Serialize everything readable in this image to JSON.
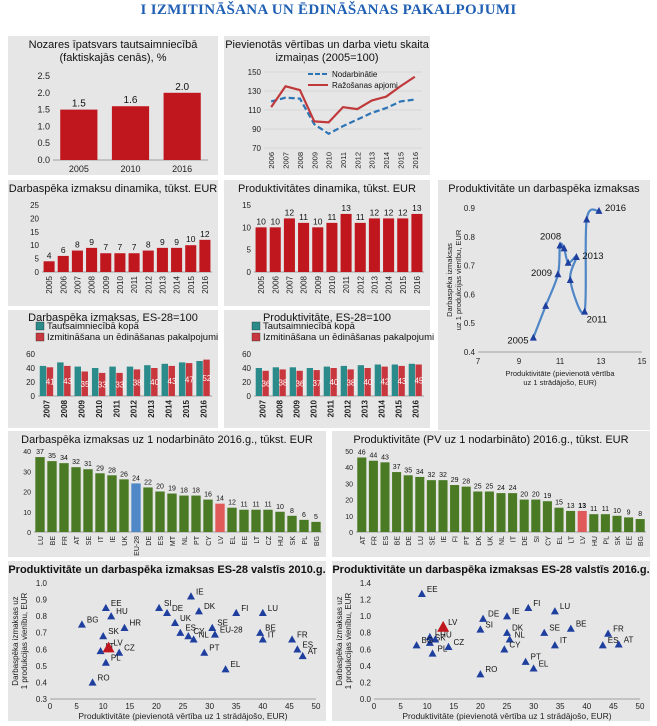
{
  "page_title": "I IZMITINĀŠANA UN ĒDINĀŠANAS PAKALPOJUMI",
  "chart_data": [
    {
      "id": "c1",
      "type": "bar",
      "title": "Nozares īpatsvars tautsaimniecībā (faktiskajās cenās), %",
      "categories": [
        "2005",
        "2010",
        "2016"
      ],
      "values": [
        1.5,
        1.6,
        2.0
      ],
      "ylim": [
        0,
        2.5
      ],
      "yticks": [
        0.0,
        0.5,
        1.0,
        1.5,
        2.0,
        2.5
      ],
      "ytick_labels": [
        "0.0",
        "0.5",
        "1.0",
        "1.5",
        "2.0",
        "2.5"
      ],
      "data_labels": [
        "1.5",
        "1.6",
        "2.0"
      ],
      "color": "#c0171f"
    },
    {
      "id": "c2",
      "type": "line",
      "title": "Pievienotās vērtības un darba vietu skaita izmaiņas (2005=100)",
      "x": [
        "2006",
        "2007",
        "2008",
        "2009",
        "2010",
        "2011",
        "2012",
        "2013",
        "2014",
        "2015",
        "2016"
      ],
      "series": [
        {
          "name": "Nodarbinātie",
          "values": [
            119,
            123,
            122,
            95,
            85,
            93,
            100,
            107,
            112,
            119,
            121
          ],
          "color": "#2e75b6",
          "dash": true
        },
        {
          "name": "Ražošanas apjomi",
          "values": [
            113,
            135,
            131,
            98,
            97,
            113,
            111,
            120,
            124,
            135,
            145
          ],
          "color": "#c0393b",
          "dash": false
        }
      ],
      "ylim": [
        70,
        150
      ],
      "yticks": [
        70,
        90,
        110,
        130,
        150
      ],
      "ytick_labels": [
        "70",
        "90",
        "110",
        "130",
        "150"
      ],
      "legend_placement": "top-right"
    },
    {
      "id": "c3",
      "type": "bar",
      "title": "Darbaspēka izmaksu dinamika, tūkst. EUR",
      "categories": [
        "2005",
        "2006",
        "2007",
        "2008",
        "2009",
        "2010",
        "2011",
        "2012",
        "2013",
        "2014",
        "2015",
        "2016"
      ],
      "values": [
        4,
        6,
        8,
        9,
        7,
        7,
        7,
        8,
        9,
        9,
        10,
        12
      ],
      "data_labels": [
        "4",
        "6",
        "8",
        "9",
        "7",
        "7",
        "7",
        "8",
        "9",
        "9",
        "10",
        "12"
      ],
      "ylim": [
        0,
        25
      ],
      "yticks": [
        0,
        5,
        10,
        15,
        20,
        25
      ],
      "ytick_labels": [
        "0",
        "5",
        "10",
        "15",
        "20",
        "25"
      ],
      "color": "#c0171f"
    },
    {
      "id": "c4",
      "type": "bar",
      "title": "Produktivitātes dinamika, tūkst. EUR",
      "categories": [
        "2005",
        "2006",
        "2007",
        "2008",
        "2009",
        "2010",
        "2011",
        "2012",
        "2013",
        "2014",
        "2015",
        "2016"
      ],
      "values": [
        10,
        10,
        12,
        11,
        10,
        11,
        13,
        11,
        12,
        12,
        12,
        13
      ],
      "data_labels": [
        "10",
        "10",
        "12",
        "11",
        "10",
        "11",
        "13",
        "11",
        "12",
        "12",
        "12",
        "13"
      ],
      "ylim": [
        0,
        15
      ],
      "yticks": [
        0,
        5,
        10,
        15
      ],
      "ytick_labels": [
        "0",
        "5",
        "10",
        "15"
      ],
      "color": "#c0171f"
    },
    {
      "id": "c5",
      "type": "scatter",
      "title": "Produktivitāte un darbaspēka izmaksas",
      "xlabel": "Produktivitāte (pievienotā vērtība uz 1 strādājošo, EUR)",
      "ylabel": "Darbaspēka izmaksas uz 1 produkcijas vienību, EUR",
      "x": [
        9.7,
        10.3,
        10.9,
        11.0,
        11.2,
        11.4,
        11.8,
        11.5,
        12.2,
        12.3,
        12.9
      ],
      "y": [
        0.45,
        0.56,
        0.67,
        0.77,
        0.76,
        0.71,
        0.73,
        0.65,
        0.54,
        0.86,
        0.89
      ],
      "xlim": [
        7,
        15
      ],
      "ylim": [
        0.4,
        0.9
      ],
      "xticks": [
        7,
        9,
        11,
        13,
        15
      ],
      "xtick_labels": [
        "7",
        "9",
        "11",
        "13",
        "15"
      ],
      "yticks": [
        0.4,
        0.5,
        0.6,
        0.7,
        0.8,
        0.9
      ],
      "ytick_labels": [
        "0.4",
        "0.5",
        "0.6",
        "0.7",
        "0.8",
        "0.9"
      ],
      "annotations": [
        {
          "text": "2005",
          "x": 9.7,
          "y": 0.45
        },
        {
          "text": "2008",
          "x": 11.0,
          "y": 0.77
        },
        {
          "text": "2009",
          "x": 10.9,
          "y": 0.67
        },
        {
          "text": "2011",
          "x": 12.2,
          "y": 0.54
        },
        {
          "text": "2013",
          "x": 11.8,
          "y": 0.73
        },
        {
          "text": "2016",
          "x": 12.9,
          "y": 0.89
        }
      ],
      "color": "#1f3f9f",
      "line_color": "#4f86c6"
    },
    {
      "id": "c6",
      "type": "bar",
      "title": "Darbaspēka izmaksas, ES-28=100",
      "categories": [
        "2007",
        "2008",
        "2009",
        "2010",
        "2011",
        "2012",
        "2013",
        "2014",
        "2015",
        "2016"
      ],
      "series": [
        {
          "name": "Tautsaimniecībā kopā",
          "values": [
            43,
            48,
            42,
            40,
            42,
            42,
            44,
            46,
            48,
            50
          ],
          "color": "#2b8a8a"
        },
        {
          "name": "Izmitināšana un ēdināšanas pakalpojumi",
          "values": [
            41,
            43,
            35,
            33,
            33,
            38,
            40,
            43,
            47,
            52
          ],
          "color": "#c8363e"
        }
      ],
      "data_labels": [
        "41",
        "43",
        "35",
        "33",
        "33",
        "38",
        "40",
        "43",
        "47",
        "52"
      ],
      "ylim": [
        0,
        60
      ],
      "yticks": [
        0,
        20,
        40,
        60
      ],
      "ytick_labels": [
        "0",
        "20",
        "40",
        "60"
      ],
      "legend_placement": "top"
    },
    {
      "id": "c7",
      "type": "bar",
      "title": "Produktivitāte, ES-28=100",
      "categories": [
        "2007",
        "2008",
        "2009",
        "2010",
        "2011",
        "2012",
        "2013",
        "2014",
        "2015",
        "2016"
      ],
      "series": [
        {
          "name": "Tautsaimniecībā kopā",
          "values": [
            40,
            41,
            41,
            40,
            42,
            43,
            44,
            45,
            45,
            46
          ],
          "color": "#2b8a8a"
        },
        {
          "name": "Izmitināšana un ēdināšanas pakalpojumi",
          "values": [
            36,
            38,
            36,
            37,
            40,
            38,
            40,
            42,
            43,
            45
          ],
          "color": "#c8363e"
        }
      ],
      "data_labels": [
        "36",
        "38",
        "36",
        "37",
        "40",
        "38",
        "40",
        "42",
        "43",
        "45"
      ],
      "ylim": [
        0,
        60
      ],
      "yticks": [
        0,
        20,
        40,
        60
      ],
      "ytick_labels": [
        "0",
        "20",
        "40",
        "60"
      ],
      "legend_placement": "top"
    },
    {
      "id": "c8",
      "type": "bar",
      "title": "Darbaspēka izmaksas uz 1 nodarbināto 2016.g., tūkst. EUR",
      "categories": [
        "LU",
        "BE",
        "FR",
        "AT",
        "SE",
        "IT",
        "IE",
        "UK",
        "EU-28",
        "DE",
        "ES",
        "MT",
        "NL",
        "PT",
        "CY",
        "LV",
        "EL",
        "EE",
        "LT",
        "CZ",
        "HU",
        "SK",
        "PL",
        "BG"
      ],
      "values": [
        37,
        35,
        34,
        32,
        31,
        29,
        28,
        26,
        24,
        22,
        20,
        19,
        18,
        18,
        16,
        14,
        12,
        11,
        11,
        11,
        10,
        8,
        6,
        5
      ],
      "data_labels": [
        "37",
        "35",
        "34",
        "32",
        "31",
        "29",
        "28",
        "26",
        "24",
        "22",
        "20",
        "19",
        "18",
        "18",
        "16",
        "14",
        "12",
        "11",
        "11",
        "11",
        "10",
        "8",
        "6",
        "5"
      ],
      "highlight": {
        "EU-28": "#4f87c7",
        "LV": "#e05a5a"
      },
      "ylim": [
        0,
        40
      ],
      "yticks": [
        0,
        10,
        20,
        30,
        40
      ],
      "ytick_labels": [
        "0",
        "10",
        "20",
        "30",
        "40"
      ],
      "color": "#4a7a24"
    },
    {
      "id": "c9",
      "type": "bar",
      "title": "Produktivitāte (PV uz 1 nodarbināto) 2016.g., tūkst. EUR",
      "categories": [
        "AT",
        "FR",
        "ES",
        "BE",
        "DE",
        "LU",
        "SE",
        "IE",
        "FI",
        "PT",
        "DK",
        "UK",
        "NL",
        "IT",
        "DE",
        "SI",
        "CY",
        "EL",
        "LT",
        "LV",
        "HU",
        "PL",
        "SK",
        "EE",
        "BG"
      ],
      "values": [
        46,
        44,
        43,
        37,
        35,
        34,
        32,
        32,
        29,
        28,
        25,
        25,
        24,
        24,
        20,
        20,
        19,
        15,
        13,
        13,
        11,
        11,
        10,
        9,
        8
      ],
      "data_labels": [
        "46",
        "44",
        "43",
        "37",
        "35",
        "34",
        "32",
        "32",
        "29",
        "28",
        "25",
        "25",
        "24",
        "24",
        "20",
        "20",
        "19",
        "15",
        "13",
        "13",
        "11",
        "11",
        "10",
        "9",
        "8"
      ],
      "highlight": {
        "LV": "#e05a5a"
      },
      "ylim": [
        0,
        50
      ],
      "yticks": [
        0,
        10,
        20,
        30,
        40,
        50
      ],
      "ytick_labels": [
        "0",
        "10",
        "20",
        "30",
        "40",
        "50"
      ],
      "color": "#4a7a24"
    },
    {
      "id": "c10",
      "type": "scatter",
      "title": "Produktivitāte un darbaspēka izmaksas ES-28 valstīs 2010.g.",
      "xlabel": "Produktivitāte (pievienotā vērtība uz 1 strādājošo, EUR)",
      "ylabel": "Darbaspēka izmaksas uz 1 produkcijas vienību, EUR",
      "xlim": [
        0,
        50
      ],
      "ylim": [
        0.3,
        1.0
      ],
      "xticks": [
        0,
        5,
        10,
        15,
        20,
        25,
        30,
        35,
        40,
        45,
        50
      ],
      "xtick_labels": [
        "0",
        "5",
        "10",
        "15",
        "20",
        "25",
        "30",
        "35",
        "40",
        "45",
        "50"
      ],
      "yticks": [
        0.3,
        0.4,
        0.5,
        0.6,
        0.7,
        0.8,
        0.9,
        1.0
      ],
      "ytick_labels": [
        "0.3",
        "0.4",
        "0.5",
        "0.6",
        "0.7",
        "0.8",
        "0.9",
        "1.0"
      ],
      "points": [
        {
          "label": "EE",
          "x": 10.5,
          "y": 0.85
        },
        {
          "label": "HU",
          "x": 11.5,
          "y": 0.8
        },
        {
          "label": "BG",
          "x": 6,
          "y": 0.75
        },
        {
          "label": "SK",
          "x": 10,
          "y": 0.68
        },
        {
          "label": "HR",
          "x": 14,
          "y": 0.73
        },
        {
          "label": "LT",
          "x": 9.5,
          "y": 0.59
        },
        {
          "label": "LV",
          "x": 11,
          "y": 0.61
        },
        {
          "label": "CZ",
          "x": 13,
          "y": 0.58
        },
        {
          "label": "PL",
          "x": 10.5,
          "y": 0.52
        },
        {
          "label": "RO",
          "x": 8,
          "y": 0.4
        },
        {
          "label": "IE",
          "x": 26.5,
          "y": 0.92
        },
        {
          "label": "SI",
          "x": 20.5,
          "y": 0.85
        },
        {
          "label": "DE",
          "x": 22,
          "y": 0.82
        },
        {
          "label": "DK",
          "x": 28,
          "y": 0.83
        },
        {
          "label": "UK",
          "x": 23.5,
          "y": 0.76
        },
        {
          "label": "ES",
          "x": 24.5,
          "y": 0.7
        },
        {
          "label": "CY",
          "x": 26,
          "y": 0.68
        },
        {
          "label": "NL",
          "x": 27,
          "y": 0.66
        },
        {
          "label": "SE",
          "x": 30.5,
          "y": 0.73
        },
        {
          "label": "EU-28",
          "x": 31,
          "y": 0.69
        },
        {
          "label": "FI",
          "x": 35,
          "y": 0.82
        },
        {
          "label": "PT",
          "x": 29,
          "y": 0.58
        },
        {
          "label": "EL",
          "x": 33,
          "y": 0.48
        },
        {
          "label": "LU",
          "x": 40,
          "y": 0.82
        },
        {
          "label": "BE",
          "x": 39.5,
          "y": 0.7
        },
        {
          "label": "IT",
          "x": 40,
          "y": 0.66
        },
        {
          "label": "FR",
          "x": 45.5,
          "y": 0.66
        },
        {
          "label": "ES",
          "x": 46.5,
          "y": 0.6
        },
        {
          "label": "AT",
          "x": 47.5,
          "y": 0.56
        }
      ],
      "highlight_label": "LV",
      "color": "#1f3f9f",
      "highlight_color": "#c0171f"
    },
    {
      "id": "c11",
      "type": "scatter",
      "title": "Produktivitāte un darbaspēka izmaksas ES-28 valstīs 2016.g.",
      "xlabel": "Produktivitāte (pievienotā vērtība uz 1 strādājošo, EUR)",
      "ylabel": "Darbaspēka izmaksas uz 1 produkcijas vienību, EUR",
      "xlim": [
        0,
        50
      ],
      "ylim": [
        0.0,
        1.4
      ],
      "xticks": [
        0,
        5,
        10,
        15,
        20,
        25,
        30,
        35,
        40,
        45,
        50
      ],
      "xtick_labels": [
        "0",
        "5",
        "10",
        "15",
        "20",
        "25",
        "30",
        "35",
        "40",
        "45",
        "50"
      ],
      "yticks": [
        0.0,
        0.2,
        0.4,
        0.6,
        0.8,
        1.0,
        1.2,
        1.4
      ],
      "ytick_labels": [
        "0.0",
        "0.2",
        "0.4",
        "0.6",
        "0.8",
        "1.0",
        "1.2",
        "1.4"
      ],
      "points": [
        {
          "label": "EE",
          "x": 9,
          "y": 1.27
        },
        {
          "label": "LT",
          "x": 10.5,
          "y": 0.75
        },
        {
          "label": "SK",
          "x": 10.5,
          "y": 0.68
        },
        {
          "label": "HU",
          "x": 11.5,
          "y": 0.72
        },
        {
          "label": "BG",
          "x": 8,
          "y": 0.65
        },
        {
          "label": "LV",
          "x": 13,
          "y": 0.87
        },
        {
          "label": "CZ",
          "x": 14,
          "y": 0.63
        },
        {
          "label": "PL",
          "x": 11,
          "y": 0.55
        },
        {
          "label": "RO",
          "x": 20,
          "y": 0.3
        },
        {
          "label": "IE",
          "x": 25,
          "y": 1.0
        },
        {
          "label": "DE",
          "x": 20.5,
          "y": 0.97
        },
        {
          "label": "SI",
          "x": 20,
          "y": 0.84
        },
        {
          "label": "DK",
          "x": 25,
          "y": 0.8
        },
        {
          "label": "NL",
          "x": 25.5,
          "y": 0.72
        },
        {
          "label": "CY",
          "x": 24.5,
          "y": 0.6
        },
        {
          "label": "FI",
          "x": 29,
          "y": 1.1
        },
        {
          "label": "PT",
          "x": 28.5,
          "y": 0.45
        },
        {
          "label": "EL",
          "x": 30,
          "y": 0.37
        },
        {
          "label": "LU",
          "x": 34,
          "y": 1.06
        },
        {
          "label": "SE",
          "x": 32,
          "y": 0.8
        },
        {
          "label": "BE",
          "x": 37,
          "y": 0.85
        },
        {
          "label": "IT",
          "x": 34,
          "y": 0.65
        },
        {
          "label": "FR",
          "x": 44,
          "y": 0.79
        },
        {
          "label": "ES",
          "x": 43,
          "y": 0.65
        },
        {
          "label": "AT",
          "x": 46,
          "y": 0.66
        }
      ],
      "highlight_label": "LV",
      "color": "#1f3f9f",
      "highlight_color": "#c0171f"
    }
  ]
}
